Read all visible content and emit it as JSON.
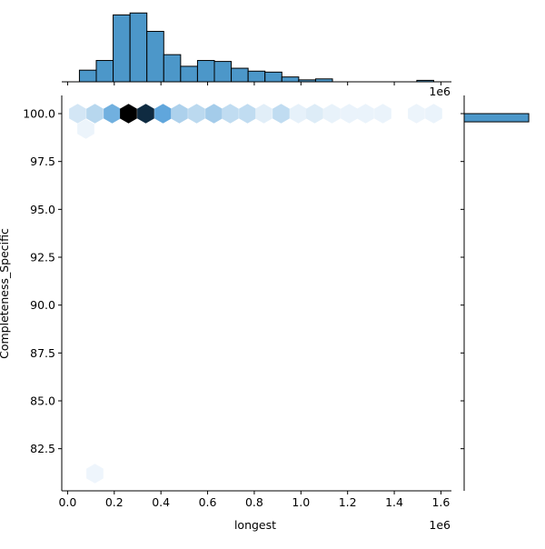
{
  "chart_data": {
    "type": "hexbin",
    "x_label": "longest",
    "y_label": "Completeness_Specific",
    "x_offset": "1e6",
    "xlim": [
      -25000,
      1645000
    ],
    "ylim": [
      80.3,
      100.95
    ],
    "xticks": [
      {
        "value": 0,
        "label": "0.0"
      },
      {
        "value": 200000,
        "label": "0.2"
      },
      {
        "value": 400000,
        "label": "0.4"
      },
      {
        "value": 600000,
        "label": "0.6"
      },
      {
        "value": 800000,
        "label": "0.8"
      },
      {
        "value": 1000000,
        "label": "1.0"
      },
      {
        "value": 1200000,
        "label": "1.2"
      },
      {
        "value": 1400000,
        "label": "1.4"
      },
      {
        "value": 1600000,
        "label": "1.6"
      }
    ],
    "yticks": [
      {
        "value": 82.5,
        "label": "82.5"
      },
      {
        "value": 85,
        "label": "85.0"
      },
      {
        "value": 87.5,
        "label": "87.5"
      },
      {
        "value": 90,
        "label": "90.0"
      },
      {
        "value": 92.5,
        "label": "92.5"
      },
      {
        "value": 95,
        "label": "95.0"
      },
      {
        "value": 97.5,
        "label": "97.5"
      },
      {
        "value": 100,
        "label": "100.0"
      }
    ],
    "hexes": {
      "x": [
        43000,
        117000,
        191000,
        261000,
        335000,
        409000,
        479000,
        553000,
        627000,
        697000,
        771000,
        841000,
        915000,
        989000,
        1059000,
        1133000,
        1207000,
        1277000,
        1351000,
        1495000,
        1569000,
        78000,
        117000
      ],
      "y": [
        100,
        100,
        100,
        100,
        100,
        100,
        100,
        100,
        100,
        100,
        100,
        100,
        100,
        100,
        100,
        100,
        100,
        100,
        100,
        100,
        100,
        99.2,
        81.2
      ],
      "counts": [
        15,
        30,
        55,
        120,
        100,
        60,
        35,
        28,
        40,
        25,
        25,
        8,
        25,
        5,
        10,
        4,
        3,
        3,
        3,
        2,
        3,
        2,
        1
      ]
    },
    "top_hist": {
      "color": "#4c97c9",
      "bins": [
        50600,
        122900,
        195200,
        267500,
        339800,
        412100,
        484400,
        556700,
        629000,
        701300,
        773600,
        845900,
        918200,
        990500,
        1062800,
        1135100,
        1207400,
        1279700,
        1352000,
        1424300,
        1496600,
        1568900
      ],
      "counts": [
        12,
        22,
        69,
        71,
        52,
        28,
        16,
        22,
        21,
        14,
        11,
        10,
        5,
        2,
        3,
        0,
        0,
        0,
        0,
        0,
        1.5
      ],
      "ylim": [
        0,
        75
      ]
    },
    "right_hist": {
      "color": "#4c97c9",
      "bins": [
        99.57,
        100.0
      ],
      "counts": [
        540
      ],
      "xlim": [
        0,
        600
      ]
    }
  }
}
